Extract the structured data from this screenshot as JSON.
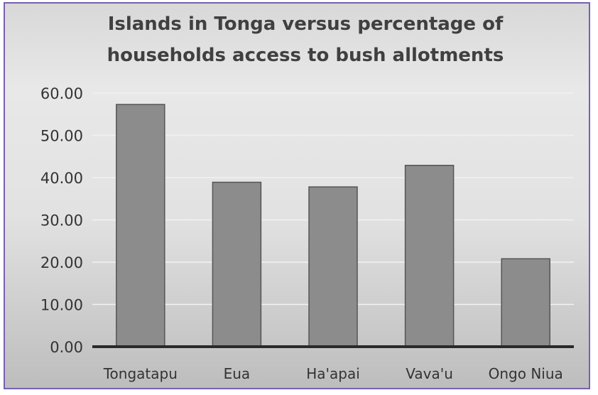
{
  "chart_data": {
    "type": "bar",
    "title_lines": [
      "Islands in Tonga versus percentage of",
      "households  access to bush allotments"
    ],
    "categories": [
      "Tongatapu",
      "Eua",
      "Ha'apai",
      "Vava'u",
      "Ongo Niua"
    ],
    "values": [
      57.3,
      38.9,
      37.8,
      42.9,
      20.8
    ],
    "ylim": [
      0,
      60
    ],
    "yticks": [
      "0.00",
      "10.00",
      "20.00",
      "30.00",
      "40.00",
      "50.00",
      "60.00"
    ],
    "ytick_values": [
      0,
      10,
      20,
      30,
      40,
      50,
      60
    ],
    "xlabel": "",
    "ylabel": "",
    "grid": true,
    "colors": {
      "bar_fill": "#8c8c8c",
      "bar_stroke": "#555555",
      "axis": "#2a2a2a",
      "grid": "#f2f2f2",
      "frame": "#7a5fb0"
    }
  }
}
